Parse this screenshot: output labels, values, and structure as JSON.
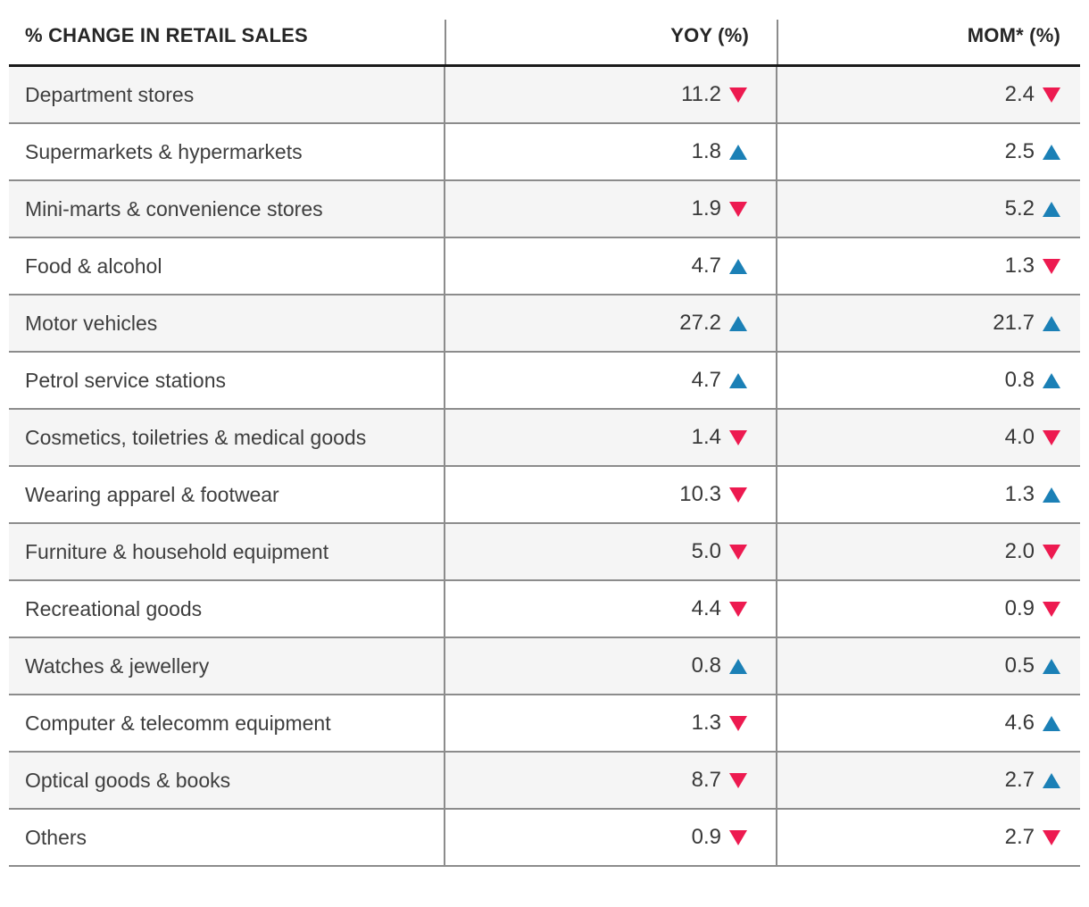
{
  "colors": {
    "up_triangle": "#1B80B6",
    "down_triangle": "#ED1A50",
    "alt_row_background": "#F5F5F5",
    "divider_gray": "#8C8C8C",
    "header_rule_black": "#1A1A1A",
    "text_dark": "#3E3E3E"
  },
  "chart_data": {
    "type": "table",
    "title": "% CHANGE IN RETAIL SALES",
    "columns": [
      {
        "key": "category",
        "label": "% CHANGE IN RETAIL SALES",
        "align": "left"
      },
      {
        "key": "yoy",
        "label": "YOY (%)",
        "align": "right"
      },
      {
        "key": "mom",
        "label": "MOM* (%)",
        "align": "right"
      }
    ],
    "rows": [
      {
        "category": "Department stores",
        "yoy": {
          "value": 11.2,
          "direction": "down"
        },
        "mom": {
          "value": 2.4,
          "direction": "down"
        }
      },
      {
        "category": "Supermarkets & hypermarkets",
        "yoy": {
          "value": 1.8,
          "direction": "up"
        },
        "mom": {
          "value": 2.5,
          "direction": "up"
        }
      },
      {
        "category": "Mini-marts & convenience stores",
        "yoy": {
          "value": 1.9,
          "direction": "down"
        },
        "mom": {
          "value": 5.2,
          "direction": "up"
        }
      },
      {
        "category": "Food & alcohol",
        "yoy": {
          "value": 4.7,
          "direction": "up"
        },
        "mom": {
          "value": 1.3,
          "direction": "down"
        }
      },
      {
        "category": "Motor vehicles",
        "yoy": {
          "value": 27.2,
          "direction": "up"
        },
        "mom": {
          "value": 21.7,
          "direction": "up"
        }
      },
      {
        "category": "Petrol service stations",
        "yoy": {
          "value": 4.7,
          "direction": "up"
        },
        "mom": {
          "value": 0.8,
          "direction": "up"
        }
      },
      {
        "category": "Cosmetics, toiletries & medical goods",
        "yoy": {
          "value": 1.4,
          "direction": "down"
        },
        "mom": {
          "value": 4.0,
          "direction": "down"
        }
      },
      {
        "category": "Wearing apparel & footwear",
        "yoy": {
          "value": 10.3,
          "direction": "down"
        },
        "mom": {
          "value": 1.3,
          "direction": "up"
        }
      },
      {
        "category": "Furniture & household equipment",
        "yoy": {
          "value": 5.0,
          "direction": "down"
        },
        "mom": {
          "value": 2.0,
          "direction": "down"
        }
      },
      {
        "category": "Recreational goods",
        "yoy": {
          "value": 4.4,
          "direction": "down"
        },
        "mom": {
          "value": 0.9,
          "direction": "down"
        }
      },
      {
        "category": "Watches & jewellery",
        "yoy": {
          "value": 0.8,
          "direction": "up"
        },
        "mom": {
          "value": 0.5,
          "direction": "up"
        }
      },
      {
        "category": "Computer & telecomm equipment",
        "yoy": {
          "value": 1.3,
          "direction": "down"
        },
        "mom": {
          "value": 4.6,
          "direction": "up"
        }
      },
      {
        "category": "Optical goods & books",
        "yoy": {
          "value": 8.7,
          "direction": "down"
        },
        "mom": {
          "value": 2.7,
          "direction": "up"
        }
      },
      {
        "category": "Others",
        "yoy": {
          "value": 0.9,
          "direction": "down"
        },
        "mom": {
          "value": 2.7,
          "direction": "down"
        }
      }
    ]
  }
}
